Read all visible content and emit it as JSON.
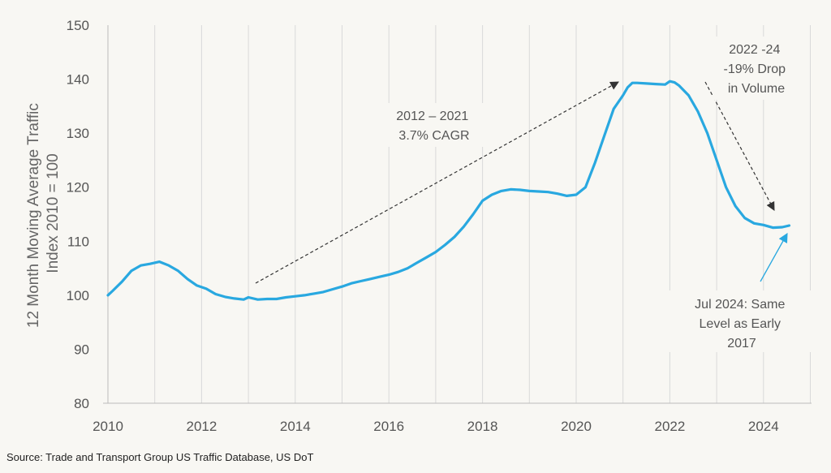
{
  "chart_data": {
    "type": "line",
    "ylabel_lines": [
      "12 Month Moving Average Traffic",
      "Index 2010  = 100"
    ],
    "xlim": [
      2010,
      2025.2
    ],
    "ylim": [
      80,
      150
    ],
    "x_ticks": [
      "2010",
      "2012",
      "2014",
      "2016",
      "2018",
      "2020",
      "2022",
      "2024"
    ],
    "y_ticks": [
      "80",
      "90",
      "100",
      "110",
      "120",
      "130",
      "140",
      "150"
    ],
    "grid": "vertical",
    "series": [
      {
        "color": "#29a8e0",
        "x": [
          2010.0,
          2010.1,
          2010.3,
          2010.5,
          2010.7,
          2010.9,
          2011.1,
          2011.3,
          2011.5,
          2011.7,
          2011.9,
          2012.1,
          2012.3,
          2012.5,
          2012.7,
          2012.9,
          2013.0,
          2013.2,
          2013.4,
          2013.6,
          2013.8,
          2014.0,
          2014.2,
          2014.4,
          2014.6,
          2014.8,
          2015.0,
          2015.2,
          2015.4,
          2015.6,
          2015.8,
          2016.0,
          2016.2,
          2016.4,
          2016.6,
          2016.8,
          2017.0,
          2017.2,
          2017.4,
          2017.6,
          2017.8,
          2018.0,
          2018.2,
          2018.4,
          2018.6,
          2018.8,
          2019.0,
          2019.2,
          2019.4,
          2019.6,
          2019.8,
          2020.0,
          2020.2,
          2020.4,
          2020.6,
          2020.8,
          2021.0,
          2021.1,
          2021.2,
          2021.3,
          2021.5,
          2021.7,
          2021.9,
          2022.0,
          2022.1,
          2022.2,
          2022.4,
          2022.6,
          2022.8,
          2023.0,
          2023.2,
          2023.4,
          2023.6,
          2023.8,
          2024.0,
          2024.2,
          2024.4,
          2024.55
        ],
        "values": [
          100.0,
          100.8,
          102.5,
          104.5,
          105.5,
          105.8,
          106.2,
          105.5,
          104.5,
          103.0,
          101.8,
          101.2,
          100.2,
          99.7,
          99.4,
          99.2,
          99.6,
          99.2,
          99.3,
          99.3,
          99.6,
          99.8,
          100.0,
          100.3,
          100.6,
          101.1,
          101.6,
          102.2,
          102.6,
          103.0,
          103.4,
          103.8,
          104.3,
          105.0,
          106.0,
          107.0,
          108.0,
          109.3,
          110.8,
          112.7,
          115.0,
          117.5,
          118.6,
          119.3,
          119.6,
          119.5,
          119.3,
          119.2,
          119.1,
          118.8,
          118.4,
          118.6,
          120.0,
          124.5,
          129.5,
          134.5,
          137.0,
          138.5,
          139.3,
          139.3,
          139.2,
          139.1,
          139.0,
          139.6,
          139.4,
          138.8,
          137.0,
          134.0,
          130.0,
          125.0,
          120.0,
          116.5,
          114.3,
          113.3,
          113.0,
          112.5,
          112.6,
          112.9
        ]
      }
    ],
    "annotations": [
      {
        "lines": [
          "2012 – 2021",
          "3.7% CAGR"
        ]
      },
      {
        "lines": [
          "2022 -24",
          "-19% Drop",
          "in Volume"
        ]
      },
      {
        "lines": [
          "Jul 2024: Same",
          "Level  as Early",
          "2017"
        ]
      }
    ],
    "source": "Source: Trade and Transport Group US Traffic Database, US DoT"
  }
}
